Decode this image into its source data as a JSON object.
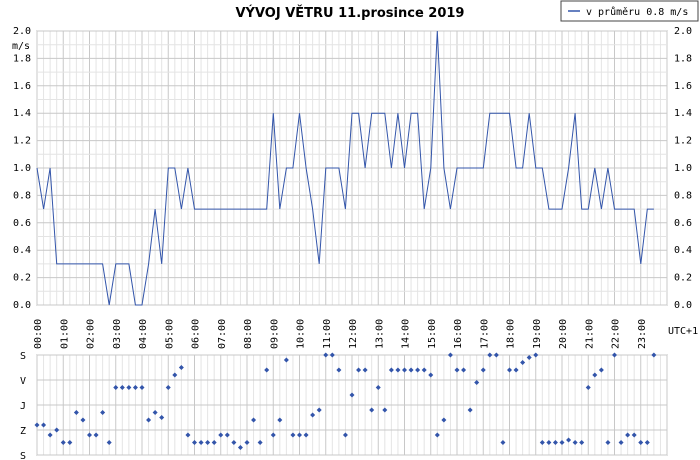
{
  "chart_data": [
    {
      "type": "line",
      "title": "VÝVOJ VĚTRU  11.prosince 2019",
      "ylabel": "m/s",
      "xlabel": "UTC+1",
      "ylim": [
        0,
        2.0
      ],
      "xlim": [
        0,
        24
      ],
      "grid": true,
      "legend_position": "top-right",
      "x_tick_labels": [
        "00:00",
        "01:00",
        "02:00",
        "03:00",
        "04:00",
        "05:00",
        "06:00",
        "07:00",
        "08:00",
        "09:00",
        "10:00",
        "11:00",
        "12:00",
        "13:00",
        "14:00",
        "15:00",
        "16:00",
        "17:00",
        "18:00",
        "19:00",
        "20:00",
        "21:00",
        "22:00",
        "23:00"
      ],
      "y_tick_labels": [
        "0.0",
        "0.2",
        "0.4",
        "0.6",
        "0.8",
        "1.0",
        "1.2",
        "1.4",
        "1.6",
        "1.8",
        "2.0"
      ],
      "series": [
        {
          "name": "v průměru 0.8 m/s",
          "color": "#3355aa",
          "x": [
            0.0,
            0.25,
            0.5,
            0.75,
            1.0,
            1.25,
            1.5,
            1.75,
            2.0,
            2.25,
            2.5,
            2.75,
            3.0,
            3.25,
            3.5,
            3.75,
            4.0,
            4.25,
            4.5,
            4.75,
            5.0,
            5.25,
            5.5,
            5.75,
            6.0,
            6.25,
            6.5,
            6.75,
            7.0,
            7.25,
            7.5,
            7.75,
            8.0,
            8.25,
            8.5,
            8.75,
            9.0,
            9.25,
            9.5,
            9.75,
            10.0,
            10.25,
            10.5,
            10.75,
            11.0,
            11.25,
            11.5,
            11.75,
            12.0,
            12.25,
            12.5,
            12.75,
            13.0,
            13.25,
            13.5,
            13.75,
            14.0,
            14.25,
            14.5,
            14.75,
            15.0,
            15.25,
            15.5,
            15.75,
            16.0,
            16.25,
            16.5,
            16.75,
            17.0,
            17.25,
            17.5,
            17.75,
            18.0,
            18.25,
            18.5,
            18.75,
            19.0,
            19.25,
            19.5,
            19.75,
            20.0,
            20.25,
            20.5,
            20.75,
            21.0,
            21.25,
            21.5,
            21.75,
            22.0,
            22.25,
            22.5,
            22.75,
            23.0,
            23.25,
            23.5
          ],
          "values": [
            1.0,
            0.7,
            1.0,
            0.3,
            0.3,
            0.3,
            0.3,
            0.3,
            0.3,
            0.3,
            0.3,
            0.0,
            0.3,
            0.3,
            0.3,
            0.0,
            0.0,
            0.3,
            0.7,
            0.3,
            1.0,
            1.0,
            0.7,
            1.0,
            0.7,
            0.7,
            0.7,
            0.7,
            0.7,
            0.7,
            0.7,
            0.7,
            0.7,
            0.7,
            0.7,
            0.7,
            1.4,
            0.7,
            1.0,
            1.0,
            1.4,
            1.0,
            0.7,
            0.3,
            1.0,
            1.0,
            1.0,
            0.7,
            1.4,
            1.4,
            1.0,
            1.4,
            1.4,
            1.4,
            1.0,
            1.4,
            1.0,
            1.4,
            1.4,
            0.7,
            1.0,
            2.0,
            1.0,
            0.7,
            1.0,
            1.0,
            1.0,
            1.0,
            1.0,
            1.4,
            1.4,
            1.4,
            1.4,
            1.0,
            1.0,
            1.4,
            1.0,
            1.0,
            0.7,
            0.7,
            0.7,
            1.0,
            1.4,
            0.7,
            0.7,
            1.0,
            0.7,
            1.0,
            0.7,
            0.7,
            0.7,
            0.7,
            0.3,
            0.7,
            0.7
          ]
        }
      ]
    },
    {
      "type": "scatter",
      "y_tick_labels": [
        "S",
        "V",
        "J",
        "Z",
        "S"
      ],
      "color": "#3355aa",
      "x": [
        0.0,
        0.25,
        0.5,
        0.75,
        1.0,
        1.25,
        1.5,
        1.75,
        2.0,
        2.25,
        2.5,
        2.75,
        3.0,
        3.25,
        3.5,
        3.75,
        4.0,
        4.25,
        4.5,
        4.75,
        5.0,
        5.25,
        5.5,
        5.75,
        6.0,
        6.25,
        6.5,
        6.75,
        7.0,
        7.25,
        7.5,
        7.75,
        8.0,
        8.25,
        8.5,
        8.75,
        9.0,
        9.25,
        9.5,
        9.75,
        10.0,
        10.25,
        10.5,
        10.75,
        11.0,
        11.25,
        11.5,
        11.75,
        12.0,
        12.25,
        12.5,
        12.75,
        13.0,
        13.25,
        13.5,
        13.75,
        14.0,
        14.25,
        14.5,
        14.75,
        15.0,
        15.25,
        15.5,
        15.75,
        16.0,
        16.25,
        16.5,
        16.75,
        17.0,
        17.25,
        17.5,
        17.75,
        18.0,
        18.25,
        18.5,
        18.75,
        19.0,
        19.25,
        19.5,
        19.75,
        20.0,
        20.25,
        20.5,
        20.75,
        21.0,
        21.25,
        21.5,
        21.75,
        22.0,
        22.25,
        22.5,
        22.75,
        23.0,
        23.25,
        23.5
      ],
      "values": [
        2.8,
        2.8,
        3.2,
        3.0,
        3.5,
        3.5,
        2.3,
        2.6,
        3.2,
        3.2,
        2.3,
        3.5,
        1.3,
        1.3,
        1.3,
        1.3,
        1.3,
        2.6,
        2.3,
        2.5,
        1.3,
        0.8,
        0.5,
        3.2,
        3.5,
        3.5,
        3.5,
        3.5,
        3.2,
        3.2,
        3.5,
        3.7,
        3.5,
        2.6,
        3.5,
        0.6,
        3.2,
        2.6,
        0.2,
        3.2,
        3.2,
        3.2,
        2.4,
        2.2,
        0.0,
        0.0,
        0.6,
        3.2,
        1.6,
        0.6,
        0.6,
        2.2,
        1.3,
        2.2,
        0.6,
        0.6,
        0.6,
        0.6,
        0.6,
        0.6,
        0.8,
        3.2,
        2.6,
        0.0,
        0.6,
        0.6,
        2.2,
        1.1,
        0.6,
        0.0,
        0.0,
        3.5,
        0.6,
        0.6,
        0.3,
        0.1,
        0.0,
        3.5,
        3.5,
        3.5,
        3.5,
        3.4,
        3.5,
        3.5,
        1.3,
        0.8,
        0.6,
        3.5,
        0.0,
        3.5,
        3.2,
        3.2,
        3.5,
        3.5,
        0.0
      ]
    }
  ]
}
